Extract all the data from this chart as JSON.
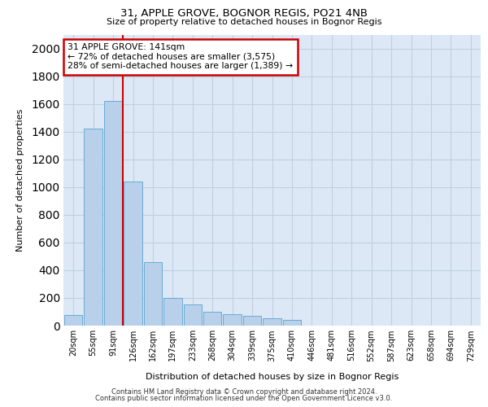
{
  "title_line1": "31, APPLE GROVE, BOGNOR REGIS, PO21 4NB",
  "title_line2": "Size of property relative to detached houses in Bognor Regis",
  "xlabel": "Distribution of detached houses by size in Bognor Regis",
  "ylabel": "Number of detached properties",
  "categories": [
    "20sqm",
    "55sqm",
    "91sqm",
    "126sqm",
    "162sqm",
    "197sqm",
    "233sqm",
    "268sqm",
    "304sqm",
    "339sqm",
    "375sqm",
    "410sqm",
    "446sqm",
    "481sqm",
    "516sqm",
    "552sqm",
    "587sqm",
    "623sqm",
    "658sqm",
    "694sqm",
    "729sqm"
  ],
  "values": [
    75,
    1420,
    1620,
    1040,
    460,
    200,
    150,
    100,
    80,
    70,
    55,
    40,
    0,
    0,
    0,
    0,
    0,
    0,
    0,
    0,
    0
  ],
  "bar_color": "#b8d0ea",
  "bar_edge_color": "#6aaad4",
  "annotation_text_line1": "31 APPLE GROVE: 141sqm",
  "annotation_text_line2": "← 72% of detached houses are smaller (3,575)",
  "annotation_text_line3": "28% of semi-detached houses are larger (1,389) →",
  "annotation_box_color": "#ffffff",
  "annotation_box_edge_color": "#cc0000",
  "vline_color": "#cc0000",
  "grid_color": "#c0d0e0",
  "background_color": "#dce8f5",
  "ylim_max": 2100,
  "yticks": [
    0,
    200,
    400,
    600,
    800,
    1000,
    1200,
    1400,
    1600,
    1800,
    2000
  ],
  "footer_line1": "Contains HM Land Registry data © Crown copyright and database right 2024.",
  "footer_line2": "Contains public sector information licensed under the Open Government Licence v3.0.",
  "vline_x_index": 2.5
}
